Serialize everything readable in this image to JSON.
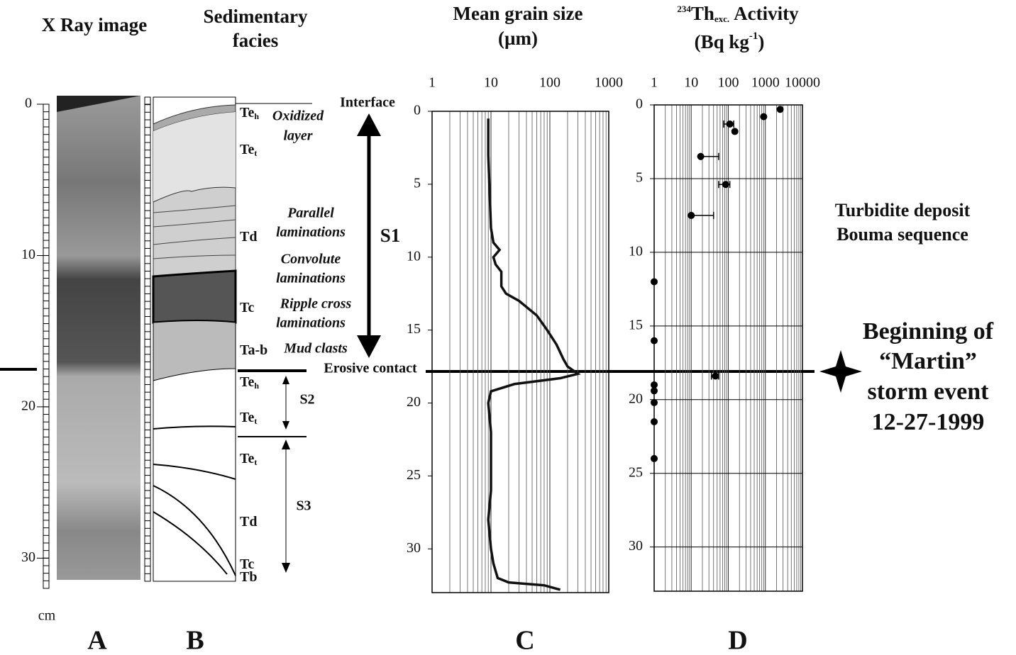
{
  "chart_data": [
    {
      "type": "line",
      "title": [
        "Mean grain size",
        "(µm)"
      ],
      "xscale": "log",
      "xlim": [
        1,
        1000
      ],
      "xticks": [
        1,
        10,
        100,
        1000
      ],
      "ylim": [
        0,
        33
      ],
      "yticks": [
        0,
        5,
        10,
        15,
        20,
        25,
        30
      ],
      "yinvert": true,
      "grid": "x",
      "color": "#111111",
      "x": [
        9,
        9,
        10,
        11,
        14,
        11,
        12,
        15,
        15,
        18,
        30,
        60,
        90,
        130,
        170,
        200,
        300,
        150,
        25,
        10,
        9,
        10,
        10,
        10,
        9,
        10,
        11,
        13,
        20,
        80,
        150
      ],
      "y": [
        0.5,
        3,
        8,
        9,
        9.5,
        10,
        10.5,
        11,
        12,
        12.5,
        13,
        14,
        15,
        16,
        17,
        17.5,
        18,
        18.3,
        18.7,
        19.2,
        20,
        22,
        24,
        26,
        28,
        30,
        31,
        32,
        32.3,
        32.5,
        32.8
      ]
    },
    {
      "type": "scatter",
      "title": {
        "isotope_mass": "234",
        "element": "Th",
        "subscript": "exc.",
        "text": "Activity",
        "unit": "(Bq kg",
        "unit_exponent": "-1",
        "close": ")"
      },
      "xscale": "log",
      "xlim": [
        1,
        10000
      ],
      "xticks": [
        1,
        10,
        100,
        1000,
        10000
      ],
      "ylim": [
        0,
        33
      ],
      "yticks": [
        0,
        5,
        10,
        15,
        20,
        25,
        30
      ],
      "yinvert": true,
      "grid": "both",
      "color": "#000000",
      "x": [
        2500,
        900,
        110,
        150,
        18,
        85,
        10,
        1,
        1,
        45,
        1,
        1,
        1,
        1,
        1
      ],
      "y": [
        0.3,
        0.8,
        1.3,
        1.8,
        3.5,
        5.4,
        7.5,
        12,
        16,
        18.4,
        19,
        19.4,
        20.2,
        21.5,
        24
      ],
      "xerr_minus": [
        null,
        null,
        35,
        null,
        null,
        30,
        null,
        null,
        null,
        10,
        null,
        null,
        null,
        null,
        null
      ],
      "xerr_plus": [
        null,
        null,
        30,
        null,
        37,
        25,
        30,
        null,
        null,
        10,
        null,
        null,
        null,
        null,
        null
      ]
    }
  ],
  "core_scale": {
    "ylim": [
      0,
      32
    ],
    "yticks": [
      0,
      10,
      20,
      30
    ],
    "unit": "cm"
  },
  "panels": {
    "xray_title": "X Ray image",
    "facies_title": [
      "Sedimentary",
      "facies"
    ],
    "letters": [
      "A",
      "B",
      "C",
      "D"
    ]
  },
  "facies": {
    "units": [
      {
        "label": "Te",
        "sub": "h"
      },
      {
        "label": "Te",
        "sub": "t"
      },
      {
        "label": "Td"
      },
      {
        "label": "Tc"
      },
      {
        "label": "Ta-b"
      },
      {
        "label": "Te",
        "sub": "h"
      },
      {
        "label": "Te",
        "sub": "t"
      },
      {
        "label": "Te",
        "sub": "t"
      },
      {
        "label": "Td"
      },
      {
        "label": "Tc"
      },
      {
        "label": "Tb"
      }
    ],
    "descriptions": [
      [
        "Oxidized",
        "layer"
      ],
      [
        "Parallel",
        "laminations"
      ],
      [
        "Convolute",
        "laminations"
      ],
      [
        "Ripple cross",
        "laminations"
      ],
      [
        "Mud clasts"
      ]
    ],
    "interface": "Interface",
    "erosive_contact": "Erosive contact",
    "sequences": [
      "S1",
      "S2",
      "S3"
    ]
  },
  "annotations": {
    "deposit": [
      "Turbidite deposit",
      "Bouma sequence"
    ],
    "event": [
      "Beginning of",
      "“Martin”",
      "storm event",
      "12-27-1999"
    ]
  }
}
